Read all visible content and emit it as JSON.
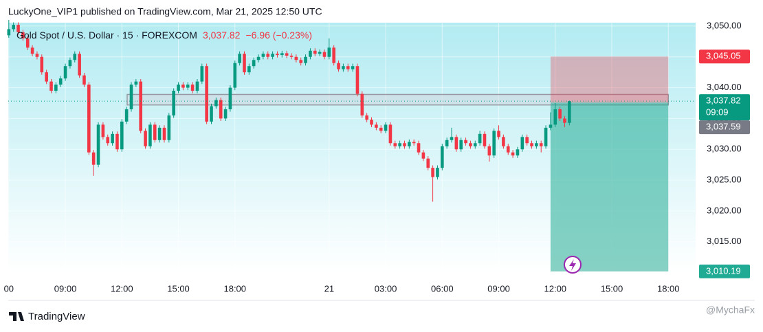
{
  "header": "LuckyOne_VIP1 published on TradingView.com, Mar 21, 2025 12:50 UTC",
  "footer": {
    "brand": "TradingView",
    "watermark": "@MychaFx"
  },
  "chart_data": {
    "type": "candlestick",
    "legend": {
      "symbol": "Gold Spot / U.S. Dollar · 15 · FOREXCOM",
      "price": "3,037.82",
      "change": "−6.96 (−0.23%)"
    },
    "up_color": "#089981",
    "down_color": "#f23645",
    "xlim": [
      5.97,
      43.45
    ],
    "xbreak": [
      21,
      22
    ],
    "xticks": [
      {
        "value": 6,
        "label": "00"
      },
      {
        "value": 9,
        "label": "09:00"
      },
      {
        "value": 12,
        "label": "12:00"
      },
      {
        "value": 15,
        "label": "15:00"
      },
      {
        "value": 18,
        "label": "18:00"
      },
      {
        "value": 24,
        "label": "21"
      },
      {
        "value": 27,
        "label": "03:00"
      },
      {
        "value": 30,
        "label": "06:00"
      },
      {
        "value": 33,
        "label": "09:00"
      },
      {
        "value": 36,
        "label": "12:00"
      },
      {
        "value": 39,
        "label": "15:00"
      },
      {
        "value": 42,
        "label": "18:00"
      }
    ],
    "ylim": [
      3009.95,
      3050.55
    ],
    "yticks": [
      {
        "value": 3015,
        "label": "3,015.00"
      },
      {
        "value": 3020,
        "label": "3,020.00"
      },
      {
        "value": 3025,
        "label": "3,025.00"
      },
      {
        "value": 3030,
        "label": "3,030.00"
      },
      {
        "value": 3035,
        "label": "3,035.00"
      },
      {
        "value": 3040,
        "label": "3,040.00"
      },
      {
        "value": 3045,
        "label": "3,045.00"
      },
      {
        "value": 3050,
        "label": "3,050.00"
      }
    ],
    "grid": true,
    "x": [
      6,
      6.25,
      6.5,
      6.75,
      7,
      7.25,
      7.5,
      7.75,
      8,
      8.25,
      8.5,
      8.75,
      9,
      9.25,
      9.5,
      9.75,
      10,
      10.25,
      10.5,
      10.75,
      11,
      11.25,
      11.5,
      11.75,
      12,
      12.25,
      12.5,
      12.75,
      13,
      13.25,
      13.5,
      13.75,
      14,
      14.25,
      14.5,
      14.75,
      15,
      15.25,
      15.5,
      15.75,
      16,
      16.25,
      16.5,
      16.75,
      17,
      17.25,
      17.5,
      17.75,
      18,
      18.25,
      18.5,
      18.75,
      19,
      19.25,
      19.5,
      19.75,
      20,
      20.25,
      20.5,
      20.75,
      22,
      22.25,
      22.5,
      22.75,
      23,
      23.25,
      23.5,
      23.75,
      24,
      24.25,
      24.5,
      24.75,
      25,
      25.25,
      25.5,
      25.75,
      26,
      26.25,
      26.5,
      26.75,
      27,
      27.25,
      27.5,
      27.75,
      28,
      28.25,
      28.5,
      28.75,
      29,
      29.25,
      29.5,
      29.75,
      30,
      30.25,
      30.5,
      30.75,
      31,
      31.25,
      31.5,
      31.75,
      32,
      32.25,
      32.5,
      32.75,
      33,
      33.25,
      33.5,
      33.75,
      34,
      34.25,
      34.5,
      34.75,
      35,
      35.25,
      35.5,
      35.75,
      36,
      36.25,
      36.5,
      36.75
    ],
    "open": [
      3048.5,
      3049.5,
      3050.2,
      3049.0,
      3048.0,
      3046.5,
      3045.5,
      3045.0,
      3042.5,
      3041.0,
      3039.5,
      3040.5,
      3041.5,
      3043.5,
      3044.5,
      3045.5,
      3042.0,
      3040.5,
      3029.5,
      3027.5,
      3034.0,
      3032.0,
      3031.0,
      3032.5,
      3030.0,
      3034.5,
      3036.5,
      3040.5,
      3041.0,
      3033.0,
      3030.5,
      3034.0,
      3031.5,
      3033.5,
      3031.5,
      3035.5,
      3039.5,
      3040.5,
      3040.0,
      3040.5,
      3039.5,
      3041.0,
      3043.5,
      3034.5,
      3037.0,
      3038.0,
      3035.0,
      3036.5,
      3040.0,
      3044.0,
      3045.5,
      3042.5,
      3043.5,
      3044.5,
      3045.0,
      3045.5,
      3045.0,
      3045.5,
      3045.3,
      3045.6,
      3045.2,
      3045.0,
      3044.5,
      3044.0,
      3045.0,
      3046.0,
      3045.5,
      3045.8,
      3045.0,
      3046.5,
      3044.0,
      3043.0,
      3043.5,
      3043.0,
      3043.5,
      3039.0,
      3035.5,
      3034.8,
      3034.0,
      3033.5,
      3033.0,
      3034.0,
      3031.0,
      3030.5,
      3031.0,
      3030.5,
      3031.2,
      3031.0,
      3029.5,
      3028.5,
      3027.0,
      3025.5,
      3027.0,
      3030.5,
      3031.5,
      3032.0,
      3030.0,
      3031.5,
      3031.0,
      3030.5,
      3031.0,
      3032.5,
      3030.5,
      3029.0,
      3033.0,
      3032.0,
      3030.5,
      3029.5,
      3029.0,
      3030.0,
      3032.0,
      3031.0,
      3030.5,
      3031.0,
      3030.5,
      3033.5,
      3034.0,
      3036.5,
      3035.0,
      3034.3
    ],
    "high": [
      3051.0,
      3050.6,
      3050.6,
      3049.4,
      3048.4,
      3046.9,
      3045.9,
      3045.4,
      3042.9,
      3041.4,
      3040.9,
      3041.9,
      3043.9,
      3044.9,
      3045.9,
      3045.9,
      3042.4,
      3040.9,
      3029.9,
      3034.4,
      3034.4,
      3032.4,
      3032.9,
      3032.9,
      3034.9,
      3036.9,
      3040.9,
      3041.4,
      3041.4,
      3033.4,
      3034.4,
      3034.4,
      3033.9,
      3033.9,
      3035.9,
      3039.9,
      3040.9,
      3040.9,
      3040.9,
      3040.9,
      3041.4,
      3043.9,
      3043.9,
      3037.4,
      3038.4,
      3038.4,
      3036.9,
      3040.4,
      3044.4,
      3045.9,
      3045.9,
      3043.9,
      3044.9,
      3045.4,
      3045.9,
      3045.9,
      3045.9,
      3045.9,
      3046.0,
      3046.0,
      3045.6,
      3045.4,
      3044.9,
      3045.4,
      3046.4,
      3046.4,
      3046.2,
      3046.2,
      3048.0,
      3046.9,
      3044.4,
      3043.9,
      3043.9,
      3043.9,
      3043.9,
      3039.4,
      3035.9,
      3035.2,
      3034.4,
      3033.9,
      3034.4,
      3034.4,
      3031.4,
      3031.4,
      3031.4,
      3031.6,
      3031.6,
      3031.4,
      3029.9,
      3028.9,
      3027.4,
      3027.4,
      3030.9,
      3031.9,
      3033.5,
      3032.4,
      3031.9,
      3031.9,
      3031.4,
      3031.4,
      3033.0,
      3032.9,
      3030.9,
      3033.4,
      3033.9,
      3032.4,
      3030.9,
      3029.9,
      3030.4,
      3032.4,
      3032.4,
      3031.4,
      3031.4,
      3031.4,
      3033.9,
      3036.0,
      3037.5,
      3036.9,
      3035.4,
      3037.9
    ],
    "low": [
      3048.1,
      3049.1,
      3048.6,
      3047.6,
      3046.1,
      3045.1,
      3044.6,
      3042.1,
      3040.6,
      3039.1,
      3039.1,
      3040.1,
      3041.1,
      3043.1,
      3044.1,
      3041.6,
      3040.1,
      3029.1,
      3025.7,
      3027.1,
      3031.6,
      3030.6,
      3030.6,
      3029.6,
      3029.6,
      3034.1,
      3036.1,
      3040.1,
      3032.6,
      3030.1,
      3030.1,
      3031.1,
      3031.1,
      3031.1,
      3031.1,
      3035.1,
      3039.1,
      3039.6,
      3039.6,
      3039.1,
      3039.1,
      3040.6,
      3034.1,
      3034.1,
      3036.6,
      3034.6,
      3034.6,
      3036.1,
      3039.6,
      3043.6,
      3042.1,
      3042.1,
      3043.1,
      3044.1,
      3044.6,
      3044.6,
      3044.6,
      3044.9,
      3044.9,
      3044.8,
      3044.6,
      3044.1,
      3043.6,
      3043.6,
      3044.6,
      3045.1,
      3045.1,
      3044.6,
      3044.6,
      3043.6,
      3042.6,
      3042.6,
      3042.6,
      3042.6,
      3038.6,
      3035.1,
      3034.4,
      3033.6,
      3033.1,
      3032.6,
      3032.6,
      3030.6,
      3030.1,
      3030.1,
      3030.1,
      3030.1,
      3030.6,
      3029.1,
      3028.1,
      3026.6,
      3021.5,
      3025.1,
      3026.6,
      3030.1,
      3031.1,
      3029.6,
      3029.6,
      3030.6,
      3030.1,
      3030.1,
      3030.6,
      3030.1,
      3028.0,
      3028.6,
      3031.6,
      3030.1,
      3029.1,
      3028.6,
      3028.6,
      3029.6,
      3030.6,
      3030.1,
      3030.1,
      3029.5,
      3030.1,
      3033.1,
      3033.6,
      3034.6,
      3033.6,
      3033.9
    ],
    "close": [
      3049.5,
      3050.2,
      3049.0,
      3048.0,
      3046.5,
      3045.5,
      3045.0,
      3042.5,
      3041.0,
      3039.5,
      3040.5,
      3041.5,
      3043.5,
      3044.5,
      3045.5,
      3042.0,
      3040.5,
      3029.5,
      3027.5,
      3034.0,
      3032.0,
      3031.0,
      3032.5,
      3030.0,
      3034.5,
      3036.5,
      3040.5,
      3041.0,
      3033.0,
      3030.5,
      3034.0,
      3031.5,
      3033.5,
      3031.5,
      3035.5,
      3039.5,
      3040.5,
      3040.0,
      3040.5,
      3039.5,
      3041.0,
      3043.5,
      3034.5,
      3037.0,
      3038.0,
      3035.0,
      3036.5,
      3040.0,
      3044.0,
      3045.5,
      3042.5,
      3043.5,
      3044.5,
      3045.0,
      3045.5,
      3045.0,
      3045.5,
      3045.3,
      3045.6,
      3045.2,
      3045.0,
      3044.5,
      3044.0,
      3045.0,
      3046.0,
      3045.5,
      3045.8,
      3045.0,
      3046.5,
      3044.0,
      3043.0,
      3043.5,
      3043.0,
      3043.5,
      3039.0,
      3035.5,
      3034.8,
      3034.0,
      3033.5,
      3033.0,
      3034.0,
      3031.0,
      3030.5,
      3031.0,
      3030.5,
      3031.2,
      3031.0,
      3029.5,
      3028.5,
      3027.0,
      3025.5,
      3027.0,
      3030.5,
      3031.5,
      3032.0,
      3030.0,
      3031.5,
      3031.0,
      3030.5,
      3031.0,
      3032.5,
      3030.5,
      3029.0,
      3033.0,
      3032.0,
      3030.5,
      3029.5,
      3029.0,
      3030.0,
      3032.0,
      3031.0,
      3030.5,
      3031.0,
      3030.5,
      3033.5,
      3034.0,
      3036.5,
      3035.0,
      3034.3,
      3037.82
    ],
    "zone": {
      "x": [
        12.28,
        42
      ],
      "y": [
        3037.2,
        3038.9
      ]
    },
    "position": {
      "x": [
        35.75,
        42
      ],
      "stop": 3045.05,
      "entry": 3037.59,
      "target": 3010.19
    },
    "price_labels": [
      {
        "value": 3045.05,
        "label": "3,045.05",
        "color": "#f23645"
      },
      {
        "value": 3037.82,
        "label": "3,037.82",
        "countdown": "09:09",
        "color": "#089981"
      },
      {
        "value": 3037.59,
        "label": "3,037.59",
        "color": "#787b86"
      },
      {
        "value": 3010.19,
        "label": "3,010.19",
        "color": "#22ab94"
      }
    ]
  }
}
